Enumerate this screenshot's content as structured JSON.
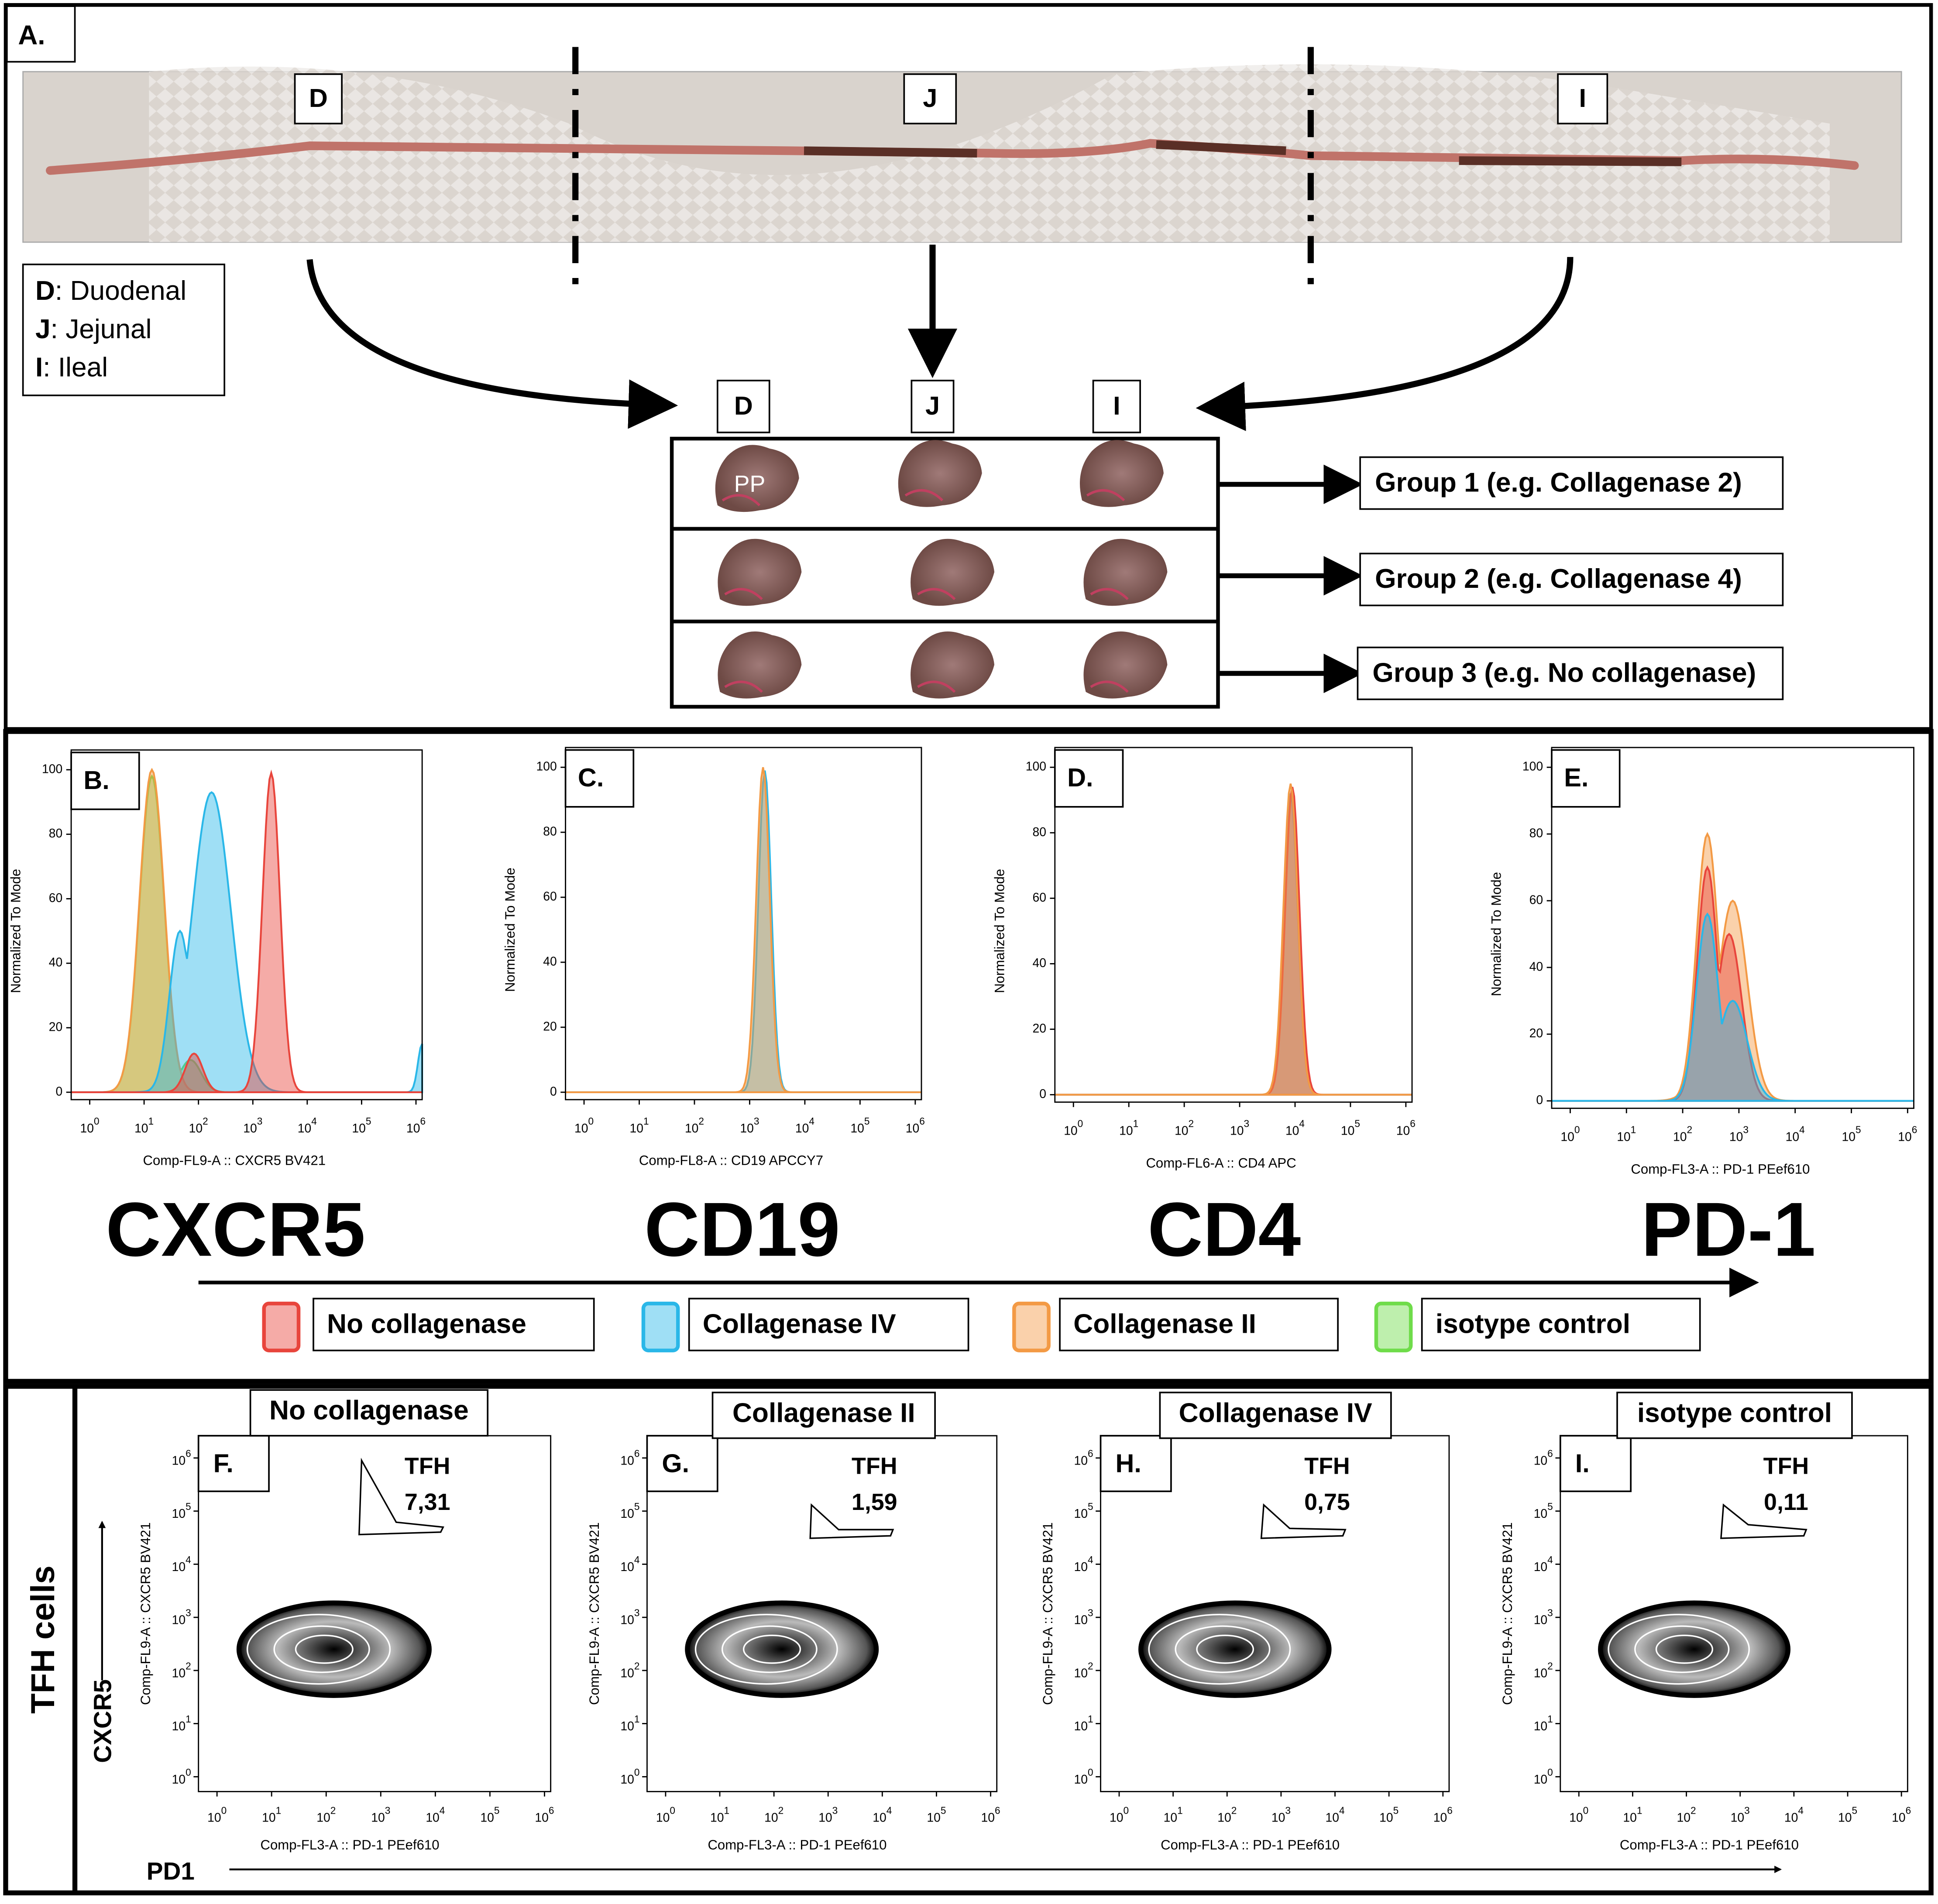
{
  "panel_a": {
    "label": "A.",
    "segments": [
      "D",
      "J",
      "I"
    ],
    "legend": [
      {
        "key": "D",
        "text": ": Duodenal"
      },
      {
        "key": "J",
        "text": ": Jejunal"
      },
      {
        "key": "I",
        "text": ": Ileal"
      }
    ],
    "pp": "PP",
    "columns": [
      "D",
      "J",
      "I"
    ],
    "groups": [
      "Group 1 (e.g. Collagenase 2)",
      "Group 2 (e.g. Collagenase 4)",
      "Group 3 (e.g. No collagenase)"
    ]
  },
  "histograms": {
    "ylabel": "Normalized To Mode",
    "yticks": [
      0,
      20,
      40,
      60,
      80,
      100
    ],
    "tick_base": "10",
    "xtick_exponents": [
      0,
      1,
      2,
      3,
      4,
      5,
      6
    ],
    "panels": [
      {
        "label": "B.",
        "xlabel": "Comp-FL9-A :: CXCR5 BV421",
        "marker": "CXCR5"
      },
      {
        "label": "C.",
        "xlabel": "Comp-FL8-A :: CD19 APCCY7",
        "marker": "CD19"
      },
      {
        "label": "D.",
        "xlabel": "Comp-FL6-A :: CD4 APC",
        "marker": "CD4"
      },
      {
        "label": "E.",
        "xlabel": "Comp-FL3-A :: PD-1 PEef610",
        "marker": "PD-1"
      }
    ],
    "legend": [
      {
        "name": "No collagenase",
        "color": "#e8453c"
      },
      {
        "name": "Collagenase IV",
        "color": "#2ab7e8"
      },
      {
        "name": "Collagenase II",
        "color": "#f39a45"
      },
      {
        "name": "isotype control",
        "color": "#6fdc4a"
      }
    ]
  },
  "flow": {
    "side_label": "TFH cells",
    "y_axis": "CXCR5",
    "x_axis": "PD1",
    "xlabel": "Comp-FL3-A :: PD-1 PEef610",
    "ylabel": "Comp-FL9-A :: CXCR5 BV421",
    "gate": "TFH",
    "panels": [
      {
        "title": "No collagenase",
        "label": "F.",
        "value": "7,31"
      },
      {
        "title": "Collagenase II",
        "label": "G.",
        "value": "1,59"
      },
      {
        "title": "Collagenase IV",
        "label": "H.",
        "value": "0,75"
      },
      {
        "title": "isotype control",
        "label": "I.",
        "value": "0,11"
      }
    ]
  }
}
